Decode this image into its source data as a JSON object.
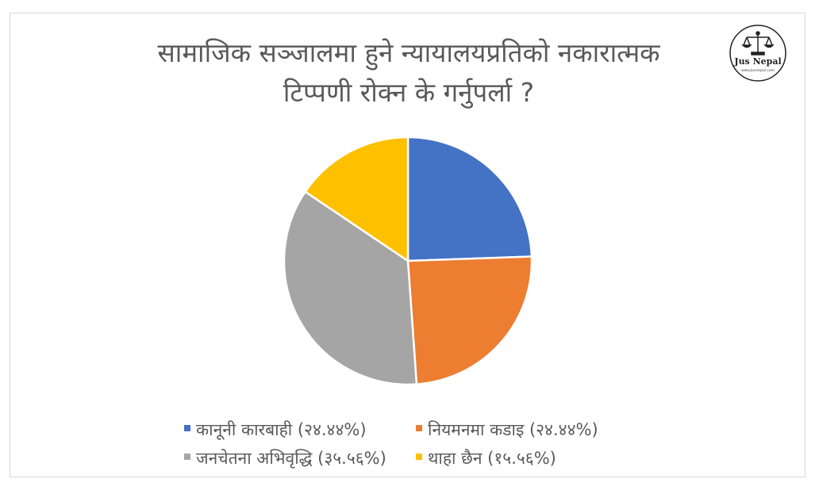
{
  "title_lines": [
    "सामाजिक सञ्जालमा हुने न्यायालयप्रतिको नकारात्मक",
    "टिप्पणी रोक्न के गर्नुपर्ला ?"
  ],
  "logo": {
    "name": "Jus Nepal",
    "url": "www.Jusnepal.com"
  },
  "chart_data": {
    "type": "pie",
    "title": "सामाजिक सञ्जालमा हुने न्यायालयप्रतिको नकारात्मक टिप्पणी रोक्न के गर्नुपर्ला ?",
    "legend_position": "bottom",
    "slices": [
      {
        "label": "कानूनी कारबाही",
        "percent_label": "(२४.४४%)",
        "value": 24.44,
        "color": "#4472c4"
      },
      {
        "label": "नियमनमा कडाइ",
        "percent_label": "(२४.४४%)",
        "value": 24.44,
        "color": "#ed7d31"
      },
      {
        "label": "जनचेतना अभिवृद्धि",
        "percent_label": "(३५.५६%)",
        "value": 35.56,
        "color": "#a5a5a5"
      },
      {
        "label": "थाहा छैन",
        "percent_label": "(१५.५६%)",
        "value": 15.56,
        "color": "#ffc000"
      }
    ]
  },
  "legend": {
    "items": [
      {
        "text": "कानूनी कारबाही (२४.४४%)"
      },
      {
        "text": "नियमनमा कडाइ (२४.४४%)"
      },
      {
        "text": "जनचेतना अभिवृद्धि (३५.५६%)"
      },
      {
        "text": "थाहा छैन (१५.५६%)"
      }
    ]
  }
}
